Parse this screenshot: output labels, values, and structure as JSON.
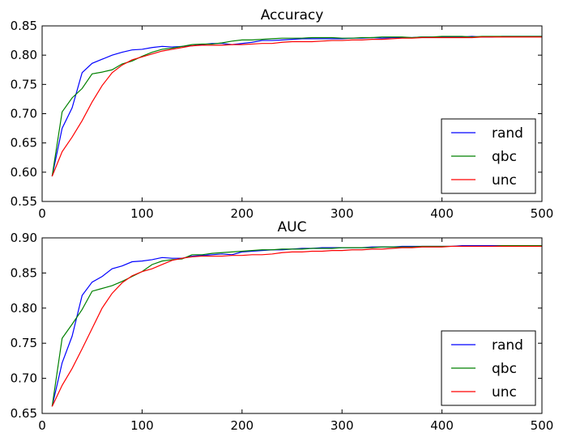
{
  "chart_data": [
    {
      "type": "line",
      "title": "Accuracy",
      "xlabel": "",
      "ylabel": "",
      "xlim": [
        0,
        500
      ],
      "ylim": [
        0.55,
        0.85
      ],
      "xticks": [
        0,
        100,
        200,
        300,
        400,
        500
      ],
      "yticks": [
        "0.55",
        "0.60",
        "0.65",
        "0.70",
        "0.75",
        "0.80",
        "0.85"
      ],
      "grid": false,
      "legend_position": "lower-right",
      "x": [
        10,
        20,
        30,
        40,
        50,
        60,
        70,
        80,
        90,
        100,
        110,
        120,
        130,
        140,
        150,
        160,
        170,
        180,
        190,
        200,
        210,
        220,
        230,
        240,
        250,
        260,
        270,
        280,
        290,
        300,
        310,
        320,
        330,
        340,
        350,
        360,
        370,
        380,
        390,
        400,
        410,
        420,
        430,
        440,
        450,
        460,
        470,
        480,
        490,
        500
      ],
      "series": [
        {
          "name": "rand",
          "color": "#0000ff",
          "values": [
            0.593,
            0.675,
            0.71,
            0.77,
            0.786,
            0.793,
            0.8,
            0.805,
            0.809,
            0.81,
            0.813,
            0.815,
            0.814,
            0.815,
            0.816,
            0.818,
            0.82,
            0.82,
            0.818,
            0.82,
            0.822,
            0.825,
            0.825,
            0.826,
            0.827,
            0.828,
            0.828,
            0.828,
            0.828,
            0.828,
            0.829,
            0.829,
            0.83,
            0.829,
            0.83,
            0.83,
            0.83,
            0.831,
            0.831,
            0.831,
            0.831,
            0.831,
            0.832,
            0.831,
            0.831,
            0.832,
            0.832,
            0.832,
            0.832,
            0.832
          ]
        },
        {
          "name": "qbc",
          "color": "#008000",
          "values": [
            0.593,
            0.703,
            0.727,
            0.743,
            0.768,
            0.771,
            0.775,
            0.785,
            0.79,
            0.798,
            0.805,
            0.81,
            0.812,
            0.815,
            0.818,
            0.819,
            0.819,
            0.821,
            0.824,
            0.826,
            0.826,
            0.827,
            0.828,
            0.829,
            0.829,
            0.829,
            0.83,
            0.83,
            0.83,
            0.829,
            0.829,
            0.83,
            0.83,
            0.831,
            0.831,
            0.831,
            0.83,
            0.831,
            0.831,
            0.832,
            0.832,
            0.832,
            0.831,
            0.832,
            0.832,
            0.832,
            0.832,
            0.832,
            0.832,
            0.832
          ]
        },
        {
          "name": "unc",
          "color": "#ff0000",
          "values": [
            0.593,
            0.635,
            0.66,
            0.688,
            0.72,
            0.748,
            0.77,
            0.783,
            0.792,
            0.797,
            0.802,
            0.807,
            0.81,
            0.813,
            0.816,
            0.817,
            0.817,
            0.817,
            0.818,
            0.818,
            0.819,
            0.82,
            0.82,
            0.822,
            0.823,
            0.823,
            0.823,
            0.824,
            0.825,
            0.825,
            0.826,
            0.826,
            0.827,
            0.827,
            0.828,
            0.829,
            0.829,
            0.83,
            0.83,
            0.83,
            0.83,
            0.83,
            0.83,
            0.831,
            0.831,
            0.831,
            0.831,
            0.831,
            0.831,
            0.831
          ]
        }
      ]
    },
    {
      "type": "line",
      "title": "AUC",
      "xlabel": "",
      "ylabel": "",
      "xlim": [
        0,
        500
      ],
      "ylim": [
        0.65,
        0.9
      ],
      "xticks": [
        0,
        100,
        200,
        300,
        400,
        500
      ],
      "yticks": [
        "0.65",
        "0.70",
        "0.75",
        "0.80",
        "0.85",
        "0.90"
      ],
      "grid": false,
      "legend_position": "lower-right",
      "x": [
        10,
        20,
        30,
        40,
        50,
        60,
        70,
        80,
        90,
        100,
        110,
        120,
        130,
        140,
        150,
        160,
        170,
        180,
        190,
        200,
        210,
        220,
        230,
        240,
        250,
        260,
        270,
        280,
        290,
        300,
        310,
        320,
        330,
        340,
        350,
        360,
        370,
        380,
        390,
        400,
        410,
        420,
        430,
        440,
        450,
        460,
        470,
        480,
        490,
        500
      ],
      "series": [
        {
          "name": "rand",
          "color": "#0000ff",
          "values": [
            0.66,
            0.722,
            0.76,
            0.818,
            0.837,
            0.845,
            0.856,
            0.86,
            0.866,
            0.867,
            0.869,
            0.872,
            0.871,
            0.871,
            0.874,
            0.875,
            0.876,
            0.877,
            0.876,
            0.88,
            0.881,
            0.882,
            0.883,
            0.883,
            0.884,
            0.885,
            0.885,
            0.886,
            0.886,
            0.886,
            0.886,
            0.886,
            0.887,
            0.887,
            0.887,
            0.888,
            0.888,
            0.888,
            0.888,
            0.888,
            0.888,
            0.889,
            0.889,
            0.889,
            0.889,
            0.889,
            0.889,
            0.889,
            0.889,
            0.889
          ]
        },
        {
          "name": "qbc",
          "color": "#008000",
          "values": [
            0.66,
            0.757,
            0.777,
            0.798,
            0.824,
            0.828,
            0.832,
            0.838,
            0.845,
            0.852,
            0.862,
            0.867,
            0.869,
            0.87,
            0.876,
            0.876,
            0.878,
            0.879,
            0.88,
            0.881,
            0.882,
            0.883,
            0.883,
            0.884,
            0.884,
            0.884,
            0.885,
            0.885,
            0.885,
            0.886,
            0.886,
            0.886,
            0.886,
            0.887,
            0.887,
            0.887,
            0.887,
            0.888,
            0.888,
            0.888,
            0.888,
            0.888,
            0.888,
            0.888,
            0.888,
            0.889,
            0.889,
            0.889,
            0.889,
            0.889
          ]
        },
        {
          "name": "unc",
          "color": "#ff0000",
          "values": [
            0.66,
            0.69,
            0.714,
            0.742,
            0.771,
            0.8,
            0.821,
            0.836,
            0.846,
            0.852,
            0.856,
            0.862,
            0.868,
            0.871,
            0.873,
            0.874,
            0.874,
            0.874,
            0.875,
            0.875,
            0.876,
            0.876,
            0.877,
            0.879,
            0.88,
            0.88,
            0.881,
            0.881,
            0.882,
            0.882,
            0.883,
            0.883,
            0.884,
            0.884,
            0.885,
            0.886,
            0.886,
            0.887,
            0.887,
            0.887,
            0.888,
            0.888,
            0.888,
            0.888,
            0.888,
            0.888,
            0.888,
            0.888,
            0.888,
            0.888
          ]
        }
      ]
    }
  ]
}
